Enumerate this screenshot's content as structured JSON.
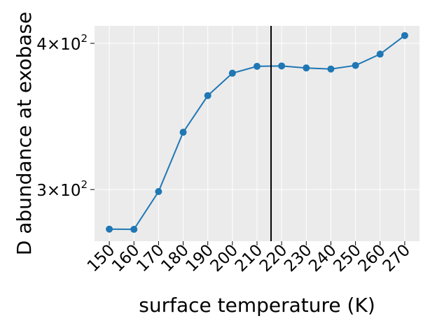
{
  "chart_data": {
    "type": "line",
    "xlabel": "surface temperature (K)",
    "ylabel": "D abundance at exobase",
    "x": [
      150,
      160,
      170,
      180,
      190,
      200,
      210,
      220,
      230,
      240,
      250,
      260,
      270
    ],
    "series": [
      {
        "values": [
          277.5,
          277.4,
          298.8,
          335.8,
          360.9,
          377.2,
          382.3,
          382.6,
          381.1,
          380.3,
          383.0,
          391.6,
          406.2
        ]
      }
    ],
    "x_ticks": [
      "150",
      "160",
      "170",
      "180",
      "190",
      "200",
      "210",
      "220",
      "230",
      "240",
      "250",
      "260",
      "270"
    ],
    "y_scale": "log",
    "y_ticks": [
      {
        "value": 300,
        "mantissa": "3",
        "base": "10",
        "exponent": "2"
      },
      {
        "value": 400,
        "mantissa": "4",
        "base": "10",
        "exponent": "2"
      }
    ],
    "ylim": [
      271,
      414
    ],
    "xlim": [
      144,
      276
    ],
    "vertical_line_x": 215.7,
    "grid": true,
    "colors": {
      "series": "#1f77b4",
      "background": "#ebebeb",
      "grid": "#ffffff",
      "vline": "#000000"
    }
  }
}
